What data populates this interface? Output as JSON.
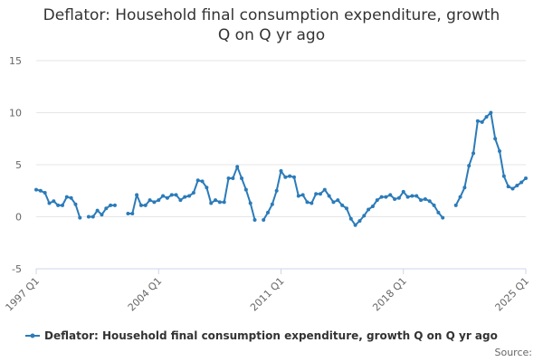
{
  "chart_data": {
    "type": "line",
    "title_line1": "Deflator: Household final consumption expenditure, growth",
    "title_line2": "Q on Q yr ago",
    "ylim": [
      -5,
      15
    ],
    "yticks": [
      15,
      10,
      5,
      0,
      -5
    ],
    "xtick_labels": [
      "1997 Q1",
      "2004 Q1",
      "2011 Q1",
      "2018 Q1",
      "2025 Q1"
    ],
    "xtick_index": [
      0,
      28,
      56,
      84,
      112
    ],
    "grid": true,
    "legend_position": "bottom",
    "series": [
      {
        "name": "Deflator: Household final consumption expenditure, growth Q on Q yr ago",
        "color": "#2b7bb9",
        "values": [
          2.6,
          2.5,
          2.3,
          1.3,
          1.5,
          1.1,
          1.1,
          1.9,
          1.8,
          1.2,
          -0.1,
          null,
          0.0,
          0.0,
          0.6,
          0.2,
          0.8,
          1.1,
          1.1,
          null,
          null,
          0.3,
          0.3,
          2.1,
          1.1,
          1.1,
          1.6,
          1.4,
          1.6,
          2.0,
          1.8,
          2.1,
          2.1,
          1.6,
          1.9,
          2.0,
          2.3,
          3.5,
          3.4,
          2.8,
          1.3,
          1.6,
          1.4,
          1.4,
          3.7,
          3.7,
          4.8,
          3.7,
          2.6,
          1.3,
          -0.3,
          null,
          -0.3,
          0.4,
          1.2,
          2.5,
          4.4,
          3.8,
          3.9,
          3.8,
          2.0,
          2.1,
          1.4,
          1.3,
          2.2,
          2.2,
          2.6,
          2.0,
          1.4,
          1.6,
          1.1,
          0.8,
          -0.2,
          -0.8,
          -0.4,
          0.1,
          0.7,
          1.0,
          1.6,
          1.9,
          1.9,
          2.1,
          1.7,
          1.8,
          2.4,
          1.9,
          2.0,
          2.0,
          1.6,
          1.7,
          1.5,
          1.1,
          0.4,
          -0.1,
          null,
          null,
          1.1,
          1.9,
          2.8,
          4.9,
          6.1,
          9.2,
          9.1,
          9.6,
          10.0,
          7.5,
          6.3,
          3.9,
          2.9,
          2.7,
          3.0,
          3.3,
          3.7
        ]
      }
    ]
  },
  "source_label": "Source:"
}
